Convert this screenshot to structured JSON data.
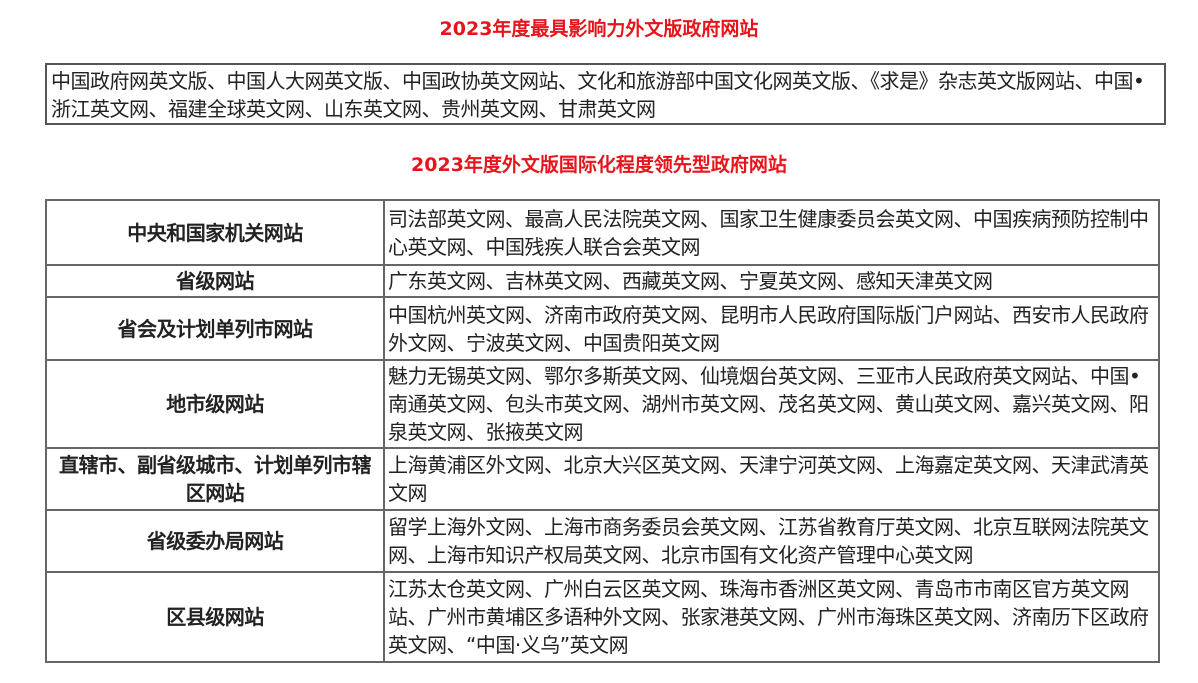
{
  "section1": {
    "title": "2023年度最具影响力外文版政府网站",
    "content": "中国政府网英文版、中国人大网英文版、中国政协英文网站、文化和旅游部中国文化网英文版、《求是》杂志英文版网站、中国•浙江英文网、福建全球英文网、山东英文网、贵州英文网、甘肃英文网"
  },
  "section2": {
    "title": "2023年度外文版国际化程度领先型政府网站",
    "rows": [
      {
        "category": "中央和国家机关网站",
        "sites": "司法部英文网、最高人民法院英文网、国家卫生健康委员会英文网、中国疾病预防控制中心英文网、中国残疾人联合会英文网"
      },
      {
        "category": "省级网站",
        "sites": "广东英文网、吉林英文网、西藏英文网、宁夏英文网、感知天津英文网"
      },
      {
        "category": "省会及计划单列市网站",
        "sites": "中国杭州英文网、济南市政府英文网、昆明市人民政府国际版门户网站、西安市人民政府外文网、宁波英文网、中国贵阳英文网"
      },
      {
        "category": "地市级网站",
        "sites": "魅力无锡英文网、鄂尔多斯英文网、仙境烟台英文网、三亚市人民政府英文网站、中国•南通英文网、包头市英文网、湖州市英文网、茂名英文网、黄山英文网、嘉兴英文网、阳泉英文网、张掖英文网"
      },
      {
        "category": "直辖市、副省级城市、计划单列市辖区网站",
        "sites": "上海黄浦区外文网、北京大兴区英文网、天津宁河英文网、上海嘉定英文网、天津武清英文网"
      },
      {
        "category": "省级委办局网站",
        "sites": "留学上海外文网、上海市商务委员会英文网、江苏省教育厅英文网、北京互联网法院英文网、上海市知识产权局英文网、北京市国有文化资产管理中心英文网"
      },
      {
        "category": "区县级网站",
        "sites": "江苏太仓英文网、广州白云区英文网、珠海市香洲区英文网、青岛市市南区官方英文网站、广州市黄埔区多语种外文网、张家港英文网、广州市海珠区英文网、济南历下区政府英文网、“中国·义乌”英文网"
      }
    ]
  },
  "colors": {
    "title": "#e8141c",
    "border": "#666666"
  }
}
